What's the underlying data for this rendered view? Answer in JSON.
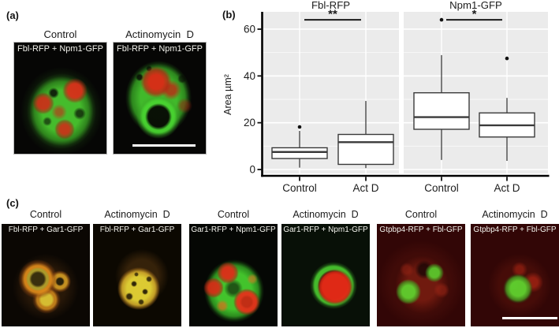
{
  "panel_a": {
    "label": "(a)",
    "columns": [
      {
        "title": "Control",
        "image_label": "Fbl-RFP + Npm1-GFP"
      },
      {
        "title": "Actinomycin  D",
        "image_label": "Fbl-RFP + Npm1-GFP"
      }
    ]
  },
  "panel_b": {
    "label": "(b)"
  },
  "chart_data": {
    "type": "boxplot",
    "ylabel": "Area µm²",
    "ylim": [
      -2,
      67
    ],
    "yticks": [
      0,
      20,
      40,
      60
    ],
    "categories": [
      "Control",
      "Act D"
    ],
    "panel_background": "#ebebeb",
    "grid_color": "#ffffff",
    "box_fill": "#ffffff",
    "box_stroke": "#3a3a3a",
    "significance_y": 64,
    "facets": [
      {
        "title": "Fbl-RFP",
        "significance": "**",
        "boxes": [
          {
            "category": "Control",
            "whisker_low": 0.8,
            "q1": 4.7,
            "median": 7.5,
            "q3": 9.3,
            "whisker_high": 16.5,
            "outliers": [
              18.2
            ]
          },
          {
            "category": "Act D",
            "whisker_low": 0.6,
            "q1": 2.2,
            "median": 11.7,
            "q3": 15.0,
            "whisker_high": 29.3,
            "outliers": []
          }
        ]
      },
      {
        "title": "Npm1-GFP",
        "significance": "*",
        "boxes": [
          {
            "category": "Control",
            "whisker_low": 4.1,
            "q1": 17.2,
            "median": 22.4,
            "q3": 32.8,
            "whisker_high": 48.9,
            "outliers": [
              64
            ]
          },
          {
            "category": "Act D",
            "whisker_low": 3.7,
            "q1": 13.9,
            "median": 18.9,
            "q3": 24.2,
            "whisker_high": 30.6,
            "outliers": [
              47.5
            ]
          }
        ]
      }
    ]
  },
  "panel_c": {
    "label": "(c)",
    "pairs": [
      {
        "columns": [
          {
            "title": "Control",
            "image_label": "Fbl-RFP + Gar1-GFP"
          },
          {
            "title": "Actinomycin  D",
            "image_label": "Fbl-RFP + Gar1-GFP"
          }
        ]
      },
      {
        "columns": [
          {
            "title": "Control",
            "image_label": "Gar1-RFP + Npm1-GFP"
          },
          {
            "title": "Actinomycin  D",
            "image_label": "Gar1-RFP + Npm1-GFP"
          }
        ]
      },
      {
        "columns": [
          {
            "title": "Control",
            "image_label": "Gtpbp4-RFP + Fbl-GFP"
          },
          {
            "title": "Actinomycin  D",
            "image_label": "Gtpbp4-RFP + Fbl-GFP"
          }
        ]
      }
    ]
  }
}
